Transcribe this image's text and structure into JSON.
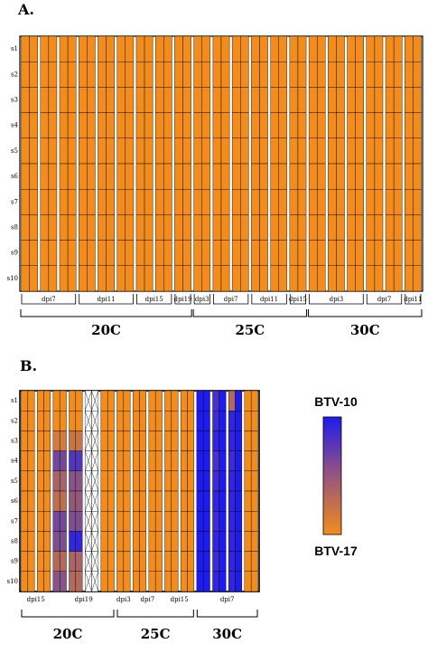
{
  "colors": {
    "btv17": "#F28C1C",
    "btv10": "#1E1BEF",
    "mixed": "#8E4F86",
    "border": "#000000"
  },
  "chart_data": [
    {
      "type": "heatmap",
      "panel": "A.",
      "rows": [
        "s1",
        "s2",
        "s3",
        "s4",
        "s5",
        "s6",
        "s7",
        "s8",
        "s9",
        "s10"
      ],
      "column_groups": [
        {
          "label": "dpi7",
          "columns": 3
        },
        {
          "label": "dpi11",
          "columns": 3
        },
        {
          "label": "dpi15",
          "columns": 2
        },
        {
          "label": "dpi19",
          "columns": 1
        },
        {
          "label": "dpi3",
          "columns": 1
        },
        {
          "label": "dpi7",
          "columns": 2
        },
        {
          "label": "dpi11",
          "columns": 2
        },
        {
          "label": "dpi15",
          "columns": 1
        },
        {
          "label": "dpi3",
          "columns": 3
        },
        {
          "label": "dpi7",
          "columns": 2
        },
        {
          "label": "dpi11",
          "columns": 1
        }
      ],
      "temperature_groups": [
        {
          "label": "20C",
          "columns": 9
        },
        {
          "label": "25C",
          "columns": 6
        },
        {
          "label": "30C",
          "columns": 6
        }
      ],
      "sub_columns_per_column": 2,
      "values": "all BTV-17 (0)"
    },
    {
      "type": "heatmap",
      "panel": "B.",
      "rows": [
        "s1",
        "s2",
        "s3",
        "s4",
        "s5",
        "s6",
        "s7",
        "s8",
        "s9",
        "s10"
      ],
      "column_groups": [
        {
          "label": "dpi15",
          "columns": 2
        },
        {
          "label": "dpi19",
          "columns": 4
        },
        {
          "label": "dpi3",
          "columns": 1
        },
        {
          "label": "dpi7",
          "columns": 2
        },
        {
          "label": "dpi15",
          "columns": 2
        },
        {
          "label": "dpi7",
          "columns": 4
        }
      ],
      "temperature_groups": [
        {
          "label": "20C",
          "columns": 6
        },
        {
          "label": "25C",
          "columns": 5
        },
        {
          "label": "30C",
          "columns": 4
        }
      ],
      "sub_columns_per_column": 2,
      "scale": {
        "min_label": "BTV-17",
        "max_label": "BTV-10",
        "min": 0,
        "max": 1
      },
      "cells": {
        "columns": [
          {
            "group": "dpi15",
            "values": [
              0,
              0,
              0,
              0,
              0,
              0,
              0,
              0,
              0,
              0
            ]
          },
          {
            "group": "dpi15",
            "values": [
              0,
              0,
              0,
              0,
              0,
              0,
              0,
              0,
              0,
              0
            ]
          },
          {
            "group": "dpi19",
            "values": [
              0,
              0,
              0.15,
              0.6,
              0.35,
              0.25,
              0.6,
              0.55,
              0.3,
              0.5
            ]
          },
          {
            "group": "dpi19",
            "values": [
              0,
              0,
              0.2,
              0.75,
              0.5,
              0.45,
              0.55,
              0.9,
              0.35,
              0.3
            ]
          },
          {
            "group": "dpi19",
            "values": [
              0,
              0,
              0,
              0,
              0,
              0,
              0,
              0,
              0,
              0
            ],
            "missing": true
          },
          {
            "group": "dpi19",
            "values": [
              0,
              0,
              0,
              0,
              0,
              0,
              0,
              0,
              0,
              0
            ]
          },
          {
            "group": "dpi3",
            "values": [
              0,
              0,
              0,
              0,
              0,
              0,
              0,
              0,
              0,
              0
            ]
          },
          {
            "group": "dpi7",
            "values": [
              0,
              0,
              0,
              0,
              0,
              0,
              0,
              0,
              0,
              0
            ]
          },
          {
            "group": "dpi7",
            "values": [
              0,
              0,
              0,
              0,
              0,
              0,
              0,
              0,
              0,
              0
            ]
          },
          {
            "group": "dpi15",
            "values": [
              0,
              0,
              0,
              0,
              0,
              0,
              0,
              0,
              0,
              0
            ]
          },
          {
            "group": "dpi15",
            "values": [
              0,
              0,
              0,
              0,
              0,
              0,
              0,
              0,
              0,
              0
            ]
          },
          {
            "group": "dpi7",
            "values": [
              1,
              1,
              1,
              1,
              1,
              1,
              1,
              1,
              1,
              1
            ]
          },
          {
            "group": "dpi7",
            "values": [
              0.8,
              0.85,
              0.9,
              0.8,
              0.85,
              0.9,
              0.85,
              0.9,
              0.85,
              0.9
            ]
          },
          {
            "group": "dpi7",
            "values": [
              0.3,
              0.9,
              0.9,
              0.85,
              0.9,
              0.9,
              0.9,
              0.9,
              0.9,
              0.9
            ]
          },
          {
            "group": "dpi7",
            "values": [
              0,
              0,
              0,
              0,
              0,
              0,
              0,
              0,
              0,
              0
            ]
          }
        ]
      },
      "sub_overrides": [
        {
          "col": 11,
          "sub": 1,
          "values": [
            1,
            1,
            1,
            1,
            1,
            1,
            1,
            1,
            1,
            1
          ]
        },
        {
          "col": 12,
          "sub": 1,
          "values": [
            1,
            1,
            1,
            1,
            1,
            1,
            1,
            1,
            1,
            1
          ]
        },
        {
          "col": 13,
          "sub": 1,
          "values": [
            1,
            1,
            1,
            1,
            1,
            1,
            1,
            1,
            1,
            1
          ]
        }
      ]
    }
  ]
}
